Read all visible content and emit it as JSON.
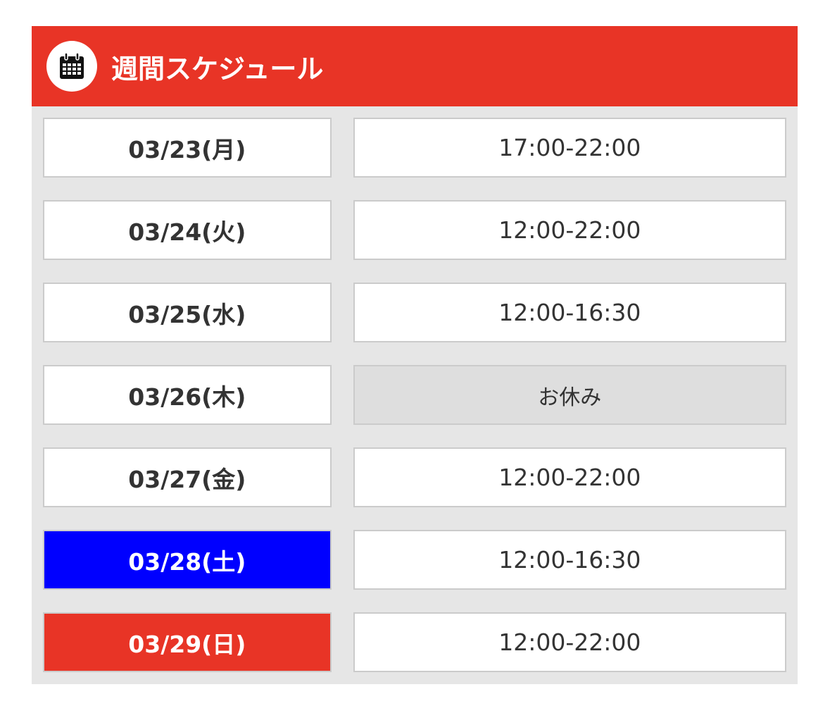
{
  "header": {
    "title": "週間スケジュール",
    "icon": "calendar-icon",
    "color": "#e83426"
  },
  "schedule": [
    {
      "date": "03/23(月)",
      "hours": "17:00-22:00"
    },
    {
      "date": "03/24(火)",
      "hours": "12:00-22:00"
    },
    {
      "date": "03/25(水)",
      "hours": "12:00-16:30"
    },
    {
      "date": "03/26(木)",
      "hours": "お休み",
      "off": true
    },
    {
      "date": "03/27(金)",
      "hours": "12:00-22:00"
    },
    {
      "date": "03/28(土)",
      "hours": "12:00-16:30",
      "date_bg": "#0000ff"
    },
    {
      "date": "03/29(日)",
      "hours": "12:00-22:00",
      "date_bg": "#e83426"
    }
  ]
}
